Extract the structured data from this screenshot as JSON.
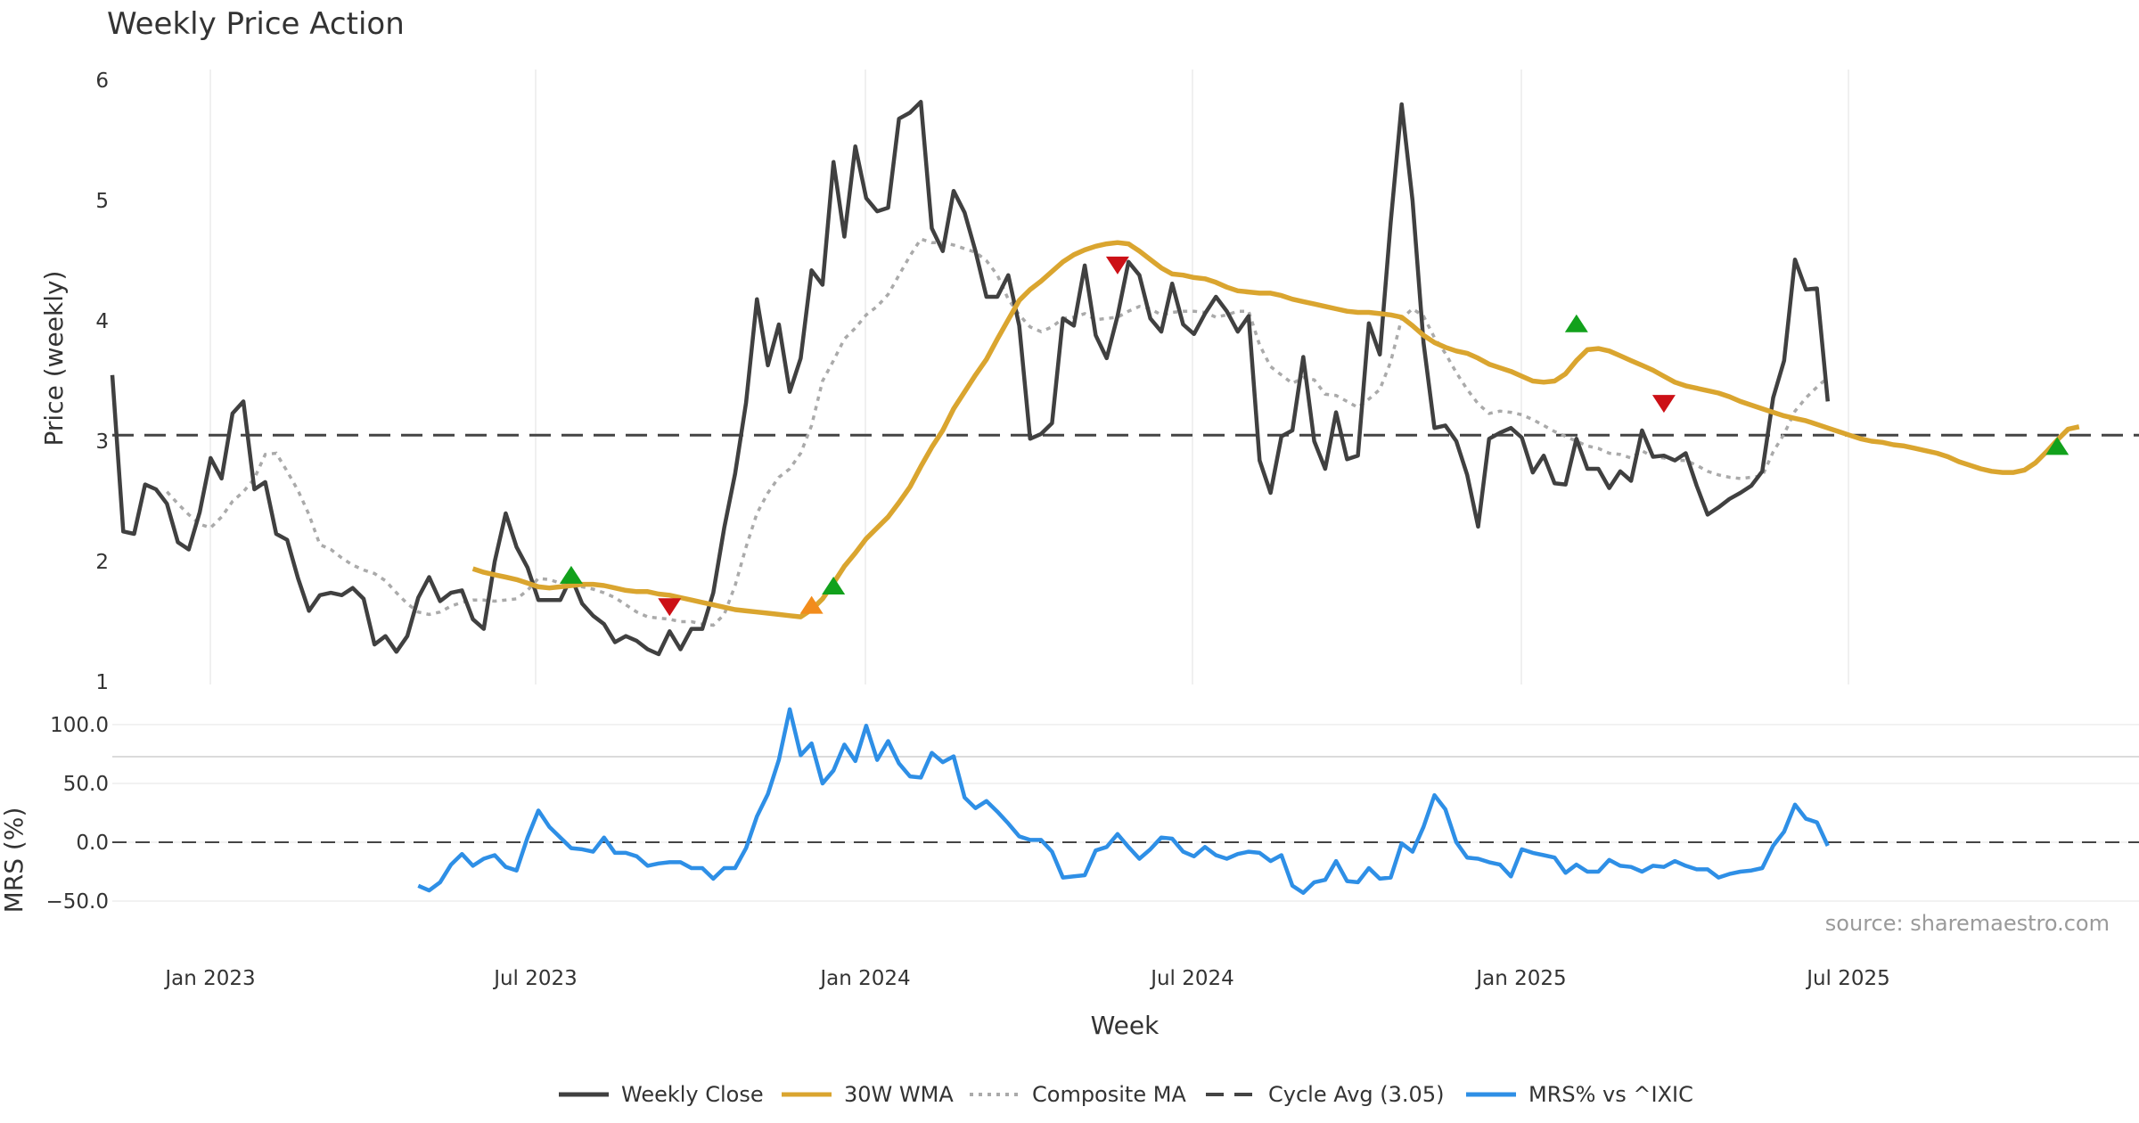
{
  "chart_data": {
    "type": "line",
    "title": "Weekly Price Action",
    "xlabel": "Week",
    "x_ticks": [
      "Jan 2023",
      "Jul 2023",
      "Jan 2024",
      "Jul 2024",
      "Jan 2025",
      "Jul 2025"
    ],
    "source": "source: sharemaestro.com",
    "price_panel": {
      "ylabel": "Price (weekly)",
      "ylim": [
        1,
        6
      ],
      "y_ticks": [
        "1",
        "2",
        "3",
        "4",
        "5",
        "6"
      ],
      "cycle_avg": 3.05,
      "weekly_close": [
        3.55,
        2.25,
        2.23,
        2.64,
        2.6,
        2.48,
        2.16,
        2.1,
        2.41,
        2.86,
        2.69,
        3.23,
        3.33,
        2.6,
        2.66,
        2.23,
        2.18,
        1.86,
        1.59,
        1.72,
        1.74,
        1.72,
        1.78,
        1.69,
        1.31,
        1.38,
        1.25,
        1.38,
        1.7,
        1.87,
        1.67,
        1.74,
        1.76,
        1.52,
        1.44,
        2.0,
        2.4,
        2.12,
        1.95,
        1.68,
        1.68,
        1.68,
        1.87,
        1.65,
        1.55,
        1.48,
        1.33,
        1.38,
        1.34,
        1.27,
        1.23,
        1.42,
        1.27,
        1.44,
        1.44,
        1.74,
        2.28,
        2.73,
        3.32,
        4.18,
        3.63,
        3.97,
        3.41,
        3.69,
        4.42,
        4.3,
        5.32,
        4.7,
        5.45,
        5.02,
        4.91,
        4.94,
        5.68,
        5.73,
        5.82,
        4.77,
        4.58,
        5.08,
        4.9,
        4.58,
        4.2,
        4.2,
        4.38,
        3.96,
        3.02,
        3.06,
        3.15,
        4.02,
        3.96,
        4.46,
        3.88,
        3.69,
        4.04,
        4.49,
        4.38,
        4.02,
        3.91,
        4.31,
        3.97,
        3.89,
        4.06,
        4.2,
        4.08,
        3.91,
        4.04,
        2.84,
        2.57,
        3.04,
        3.09,
        3.7,
        3.0,
        2.77,
        3.24,
        2.85,
        2.88,
        3.98,
        3.72,
        4.82,
        5.8,
        5.0,
        3.82,
        3.11,
        3.13,
        3.0,
        2.72,
        2.29,
        3.02,
        3.07,
        3.11,
        3.03,
        2.74,
        2.88,
        2.65,
        2.64,
        3.02,
        2.77,
        2.77,
        2.61,
        2.75,
        2.67,
        3.09,
        2.87,
        2.88,
        2.84,
        2.9,
        2.63,
        2.39,
        2.45,
        2.52,
        2.57,
        2.63,
        2.75,
        3.36,
        3.67,
        4.51,
        4.26,
        4.27,
        3.33
      ],
      "wma_30w": {
        "start_index": 33,
        "values": [
          1.94,
          1.91,
          1.89,
          1.87,
          1.85,
          1.82,
          1.79,
          1.78,
          1.79,
          1.8,
          1.81,
          1.81,
          1.8,
          1.78,
          1.76,
          1.75,
          1.75,
          1.73,
          1.72,
          1.7,
          1.68,
          1.66,
          1.64,
          1.62,
          1.6,
          1.59,
          1.58,
          1.57,
          1.56,
          1.55,
          1.54,
          1.6,
          1.69,
          1.82,
          1.96,
          2.07,
          2.19,
          2.28,
          2.37,
          2.49,
          2.62,
          2.79,
          2.95,
          3.09,
          3.27,
          3.41,
          3.55,
          3.68,
          3.85,
          4.01,
          4.17,
          4.26,
          4.33,
          4.41,
          4.49,
          4.55,
          4.59,
          4.62,
          4.64,
          4.65,
          4.64,
          4.58,
          4.51,
          4.44,
          4.39,
          4.38,
          4.36,
          4.35,
          4.32,
          4.28,
          4.25,
          4.24,
          4.23,
          4.23,
          4.21,
          4.18,
          4.16,
          4.14,
          4.12,
          4.1,
          4.08,
          4.07,
          4.07,
          4.06,
          4.05,
          4.03,
          3.96,
          3.88,
          3.82,
          3.78,
          3.75,
          3.73,
          3.69,
          3.64,
          3.61,
          3.58,
          3.54,
          3.5,
          3.49,
          3.5,
          3.56,
          3.67,
          3.76,
          3.77,
          3.75,
          3.71,
          3.67,
          3.63,
          3.59,
          3.54,
          3.49,
          3.46,
          3.44,
          3.42,
          3.4,
          3.37,
          3.33,
          3.3,
          3.27,
          3.24,
          3.21,
          3.19,
          3.17,
          3.14,
          3.11,
          3.08,
          3.05,
          3.02,
          3.0,
          2.99,
          2.97,
          2.96,
          2.94,
          2.92,
          2.9,
          2.87,
          2.83,
          2.8,
          2.77,
          2.75,
          2.74,
          2.74,
          2.76,
          2.82,
          2.91,
          3.01,
          3.1,
          3.12
        ]
      },
      "composite_ma": [
        null,
        null,
        null,
        null,
        null,
        2.58,
        2.48,
        2.39,
        2.31,
        2.28,
        2.37,
        2.5,
        2.58,
        2.69,
        2.89,
        2.9,
        2.75,
        2.59,
        2.39,
        2.14,
        2.1,
        2.03,
        1.97,
        1.93,
        1.9,
        1.84,
        1.74,
        1.65,
        1.58,
        1.56,
        1.58,
        1.63,
        1.66,
        1.68,
        1.68,
        1.67,
        1.68,
        1.69,
        1.76,
        1.86,
        1.85,
        1.82,
        1.8,
        1.79,
        1.77,
        1.74,
        1.7,
        1.64,
        1.58,
        1.54,
        1.53,
        1.52,
        1.5,
        1.5,
        1.48,
        1.47,
        1.56,
        1.8,
        2.12,
        2.4,
        2.57,
        2.7,
        2.77,
        2.9,
        3.13,
        3.5,
        3.67,
        3.85,
        3.94,
        4.05,
        4.12,
        4.22,
        4.38,
        4.54,
        4.68,
        4.65,
        4.65,
        4.63,
        4.6,
        4.57,
        4.5,
        4.38,
        4.18,
        4.05,
        3.95,
        3.91,
        3.95,
        4.02,
        4.03,
        4.06,
        4.01,
        4.02,
        4.03,
        4.08,
        4.12,
        4.1,
        4.05,
        4.07,
        4.08,
        4.08,
        4.07,
        4.03,
        4.05,
        4.08,
        4.08,
        3.8,
        3.62,
        3.55,
        3.48,
        3.53,
        3.51,
        3.39,
        3.38,
        3.33,
        3.28,
        3.35,
        3.43,
        3.66,
        4.02,
        4.1,
        4.04,
        3.86,
        3.73,
        3.57,
        3.43,
        3.31,
        3.23,
        3.25,
        3.24,
        3.22,
        3.18,
        3.13,
        3.08,
        3.04,
        3.0,
        2.96,
        2.94,
        2.9,
        2.89,
        2.86,
        2.92,
        2.87,
        2.86,
        2.84,
        2.84,
        2.8,
        2.75,
        2.72,
        2.7,
        2.69,
        2.7,
        2.71,
        2.91,
        3.06,
        3.25,
        3.36,
        3.45,
        3.53
      ],
      "signals": [
        {
          "index": 42,
          "value": 1.89,
          "type": "buy"
        },
        {
          "index": 51,
          "value": 1.62,
          "type": "sell"
        },
        {
          "index": 64,
          "value": 1.64,
          "type": "buy-early"
        },
        {
          "index": 66,
          "value": 1.8,
          "type": "buy"
        },
        {
          "index": 92,
          "value": 4.46,
          "type": "sell"
        },
        {
          "index": 134,
          "value": 3.98,
          "type": "buy"
        },
        {
          "index": 142,
          "value": 3.31,
          "type": "sell"
        },
        {
          "index": 178,
          "value": 2.96,
          "type": "buy"
        }
      ]
    },
    "mrs_panel": {
      "ylabel": "MRS (%)",
      "ylim": [
        -50,
        130
      ],
      "y_ticks": [
        "−50.0",
        "0.0",
        "50.0",
        "100.0"
      ],
      "start_index": 28,
      "values": [
        -37,
        -41,
        -34,
        -19,
        -10,
        -20,
        -14,
        -11,
        -21,
        -24,
        4,
        27,
        13,
        4,
        -5,
        -6,
        -8,
        4,
        -9,
        -9,
        -12,
        -20,
        -18,
        -17,
        -17,
        -22,
        -22,
        -31,
        -22,
        -22,
        -5,
        22,
        41,
        70,
        113,
        74,
        84,
        50,
        61,
        83,
        69,
        99,
        70,
        86,
        67,
        56,
        55,
        76,
        68,
        73,
        38,
        29,
        35,
        26,
        16,
        5,
        2,
        2,
        -8,
        -30,
        -29,
        -28,
        -7,
        -4,
        7,
        -4,
        -14,
        -6,
        4,
        3,
        -8,
        -12,
        -4,
        -11,
        -14,
        -10,
        -8,
        -9,
        -16,
        -11,
        -37,
        -43,
        -34,
        -32,
        -16,
        -33,
        -34,
        -22,
        -31,
        -30,
        -1,
        -8,
        13,
        40,
        28,
        0,
        -13,
        -14,
        -17,
        -19,
        -29,
        -6,
        -9,
        -11,
        -13,
        -26,
        -19,
        -25,
        -25,
        -15,
        -20,
        -21,
        -25,
        -20,
        -21,
        -16,
        -20,
        -23,
        -23,
        -30,
        -27,
        -25,
        -24,
        -22,
        -3,
        9,
        32,
        20,
        17,
        -3
      ]
    },
    "legend": [
      {
        "label": "Weekly Close",
        "color": "#404040",
        "style": "solid"
      },
      {
        "label": "30W WMA",
        "color": "#DAA52F",
        "style": "solid"
      },
      {
        "label": "Composite MA",
        "color": "#AAAAAA",
        "style": "dotted"
      },
      {
        "label": "Cycle Avg (3.05)",
        "color": "#444444",
        "style": "dashed"
      },
      {
        "label": "MRS% vs ^IXIC",
        "color": "#2E8FE6",
        "style": "solid"
      }
    ],
    "colors": {
      "buy": "#12A11C",
      "sell": "#CC1016",
      "buy_early": "#F28C1C"
    }
  }
}
